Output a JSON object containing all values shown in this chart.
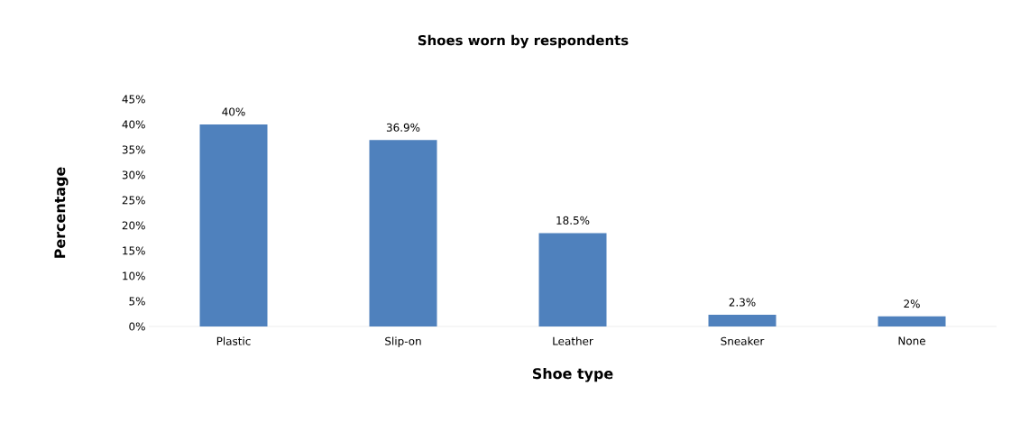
{
  "chart_data": {
    "type": "bar",
    "title": "Shoes worn by respondents",
    "xlabel": "Shoe type",
    "ylabel": "Percentage",
    "categories": [
      "Plastic",
      "Slip-on",
      "Leather",
      "Sneaker",
      "None"
    ],
    "values": [
      40,
      36.9,
      18.5,
      2.3,
      2
    ],
    "value_labels": [
      "40%",
      "36.9%",
      "18.5%",
      "2.3%",
      "2%"
    ],
    "color": "#4f81bd",
    "ylim": [
      0,
      45
    ],
    "yticks": [
      {
        "value": 0,
        "label": "0%"
      },
      {
        "value": 5,
        "label": "5%"
      },
      {
        "value": 10,
        "label": "10%"
      },
      {
        "value": 15,
        "label": "15%"
      },
      {
        "value": 20,
        "label": "20%"
      },
      {
        "value": 25,
        "label": "25%"
      },
      {
        "value": 30,
        "label": "30%"
      },
      {
        "value": 35,
        "label": "35%"
      },
      {
        "value": 40,
        "label": "40%"
      },
      {
        "value": 45,
        "label": "45%"
      }
    ],
    "grid": false
  }
}
